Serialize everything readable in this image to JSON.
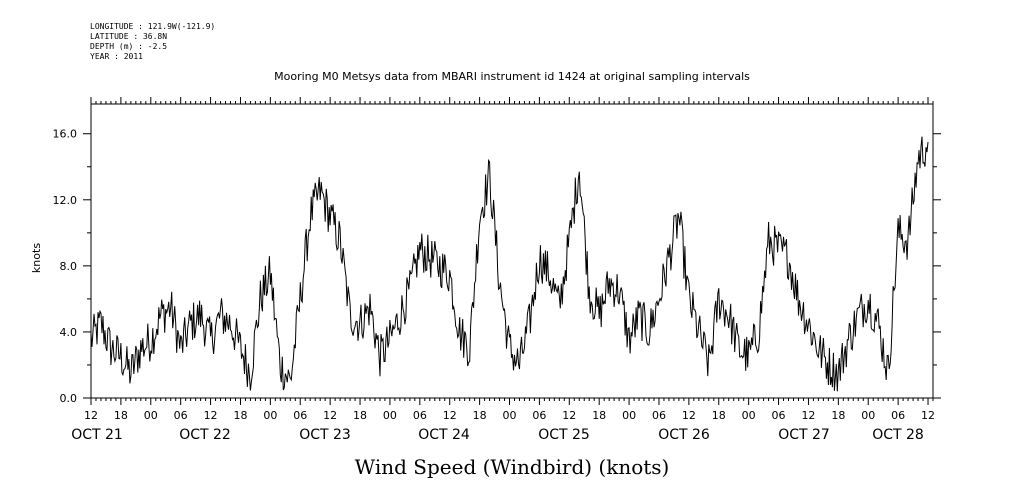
{
  "header": {
    "longitude": "LONGITUDE : 121.9W(-121.9)",
    "latitude": "LATITUDE : 36.8N",
    "depth": "DEPTH (m) : -2.5",
    "year": "YEAR : 2011"
  },
  "chart_data": {
    "type": "line",
    "title": "Mooring M0 Metsys data from MBARI instrument id 1424 at original sampling intervals",
    "xlabel": "Wind Speed (Windbird) (knots)",
    "ylabel": "knots",
    "ylim": [
      0,
      17.8
    ],
    "yticks": [
      "0.0",
      "4.0",
      "8.0",
      "12.0",
      "16.0"
    ],
    "x_axis": {
      "start": "OCT 21 12:00",
      "end": "OCT 28 13:00",
      "hour_ticks": [
        "12",
        "18",
        "00",
        "06",
        "12",
        "18",
        "00",
        "06",
        "12",
        "18",
        "00",
        "06",
        "12",
        "18",
        "00",
        "06",
        "12",
        "18",
        "00",
        "06",
        "12",
        "18",
        "00",
        "06",
        "12",
        "18",
        "00",
        "06",
        "12"
      ],
      "day_labels": [
        "OCT 21",
        "OCT 22",
        "OCT 23",
        "OCT 24",
        "OCT 25",
        "OCT 26",
        "OCT 27",
        "OCT 28"
      ]
    },
    "grid": false,
    "series": [
      {
        "color": "#000000",
        "x_hours": [
          0,
          2,
          4,
          6,
          8,
          10,
          12,
          14,
          16,
          18,
          20,
          22,
          24,
          26,
          28,
          30,
          32,
          34,
          36,
          38,
          40,
          42,
          44,
          46,
          48,
          50,
          52,
          54,
          56,
          58,
          60,
          62,
          64,
          66,
          68,
          70,
          72,
          74,
          76,
          78,
          80,
          82,
          84,
          86,
          88,
          90,
          92,
          94,
          96,
          98,
          100,
          102,
          104,
          106,
          108,
          110,
          112,
          114,
          116,
          118,
          120,
          122,
          124,
          126,
          128,
          130,
          132,
          134,
          136,
          138,
          140,
          142,
          144,
          146,
          148,
          150,
          152,
          154,
          156,
          158,
          160,
          162,
          164,
          166,
          168
        ],
        "values": [
          3.5,
          4.5,
          3.0,
          2.5,
          1.5,
          3.0,
          3.5,
          5.0,
          5.5,
          3.0,
          4.5,
          5.0,
          3.5,
          5.0,
          4.5,
          3.0,
          1.5,
          6.0,
          7.5,
          2.0,
          1.0,
          6.0,
          11.0,
          12.5,
          11.0,
          9.5,
          5.0,
          4.5,
          5.5,
          2.5,
          3.5,
          5.0,
          6.5,
          9.0,
          8.5,
          8.0,
          7.5,
          4.0,
          3.0,
          11.0,
          13.5,
          7.0,
          3.0,
          2.0,
          4.5,
          8.5,
          7.5,
          5.5,
          9.5,
          14.0,
          6.5,
          5.0,
          7.0,
          6.5,
          3.5,
          5.0,
          4.0,
          6.0,
          8.5,
          11.0,
          6.0,
          4.0,
          2.0,
          6.0,
          5.0,
          3.0,
          2.5,
          4.0,
          9.5,
          9.0,
          8.5,
          6.0,
          4.5,
          3.0,
          2.0,
          1.5,
          3.5,
          5.0,
          6.0,
          4.5,
          1.5,
          10.0,
          9.5,
          14.5,
          15.5
        ]
      }
    ]
  }
}
